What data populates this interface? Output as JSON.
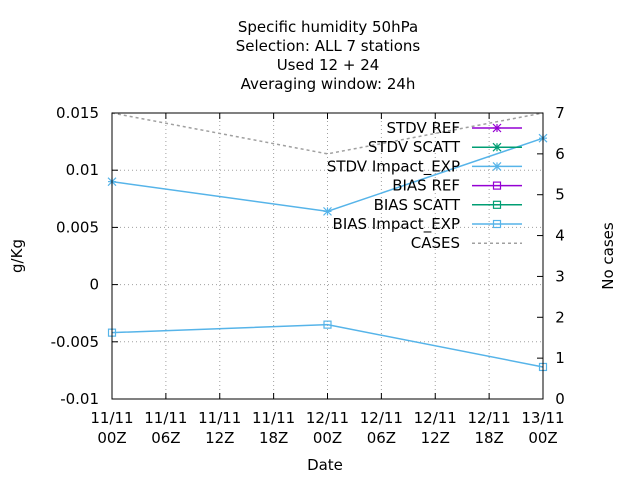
{
  "chart_data": {
    "type": "line",
    "title_lines": [
      "Specific humidity 50hPa",
      "Selection: ALL      7 stations",
      "Used  12 + 24",
      "Averaging window: 24h"
    ],
    "xlabel": "Date",
    "ylabel": "g/Kg",
    "y2label": "No cases",
    "x_ticks": [
      {
        "x": 0,
        "line1": "11/11",
        "line2": "00Z"
      },
      {
        "x": 6,
        "line1": "11/11",
        "line2": "06Z"
      },
      {
        "x": 12,
        "line1": "11/11",
        "line2": "12Z"
      },
      {
        "x": 18,
        "line1": "11/11",
        "line2": "18Z"
      },
      {
        "x": 24,
        "line1": "12/11",
        "line2": "00Z"
      },
      {
        "x": 30,
        "line1": "12/11",
        "line2": "06Z"
      },
      {
        "x": 36,
        "line1": "12/11",
        "line2": "12Z"
      },
      {
        "x": 42,
        "line1": "12/11",
        "line2": "18Z"
      },
      {
        "x": 48,
        "line1": "13/11",
        "line2": "00Z"
      }
    ],
    "xlim": [
      0,
      48
    ],
    "ylim": [
      -0.01,
      0.015
    ],
    "y_ticks": [
      {
        "v": -0.01,
        "label": "-0.01"
      },
      {
        "v": -0.005,
        "label": "-0.005"
      },
      {
        "v": 0,
        "label": "0"
      },
      {
        "v": 0.005,
        "label": "0.005"
      },
      {
        "v": 0.01,
        "label": "0.01"
      },
      {
        "v": 0.015,
        "label": "0.015"
      }
    ],
    "y2lim": [
      0,
      7
    ],
    "y2_ticks": [
      {
        "v": 0,
        "label": "0"
      },
      {
        "v": 1,
        "label": "1"
      },
      {
        "v": 2,
        "label": "2"
      },
      {
        "v": 3,
        "label": "3"
      },
      {
        "v": 4,
        "label": "4"
      },
      {
        "v": 5,
        "label": "5"
      },
      {
        "v": 6,
        "label": "6"
      },
      {
        "v": 7,
        "label": "7"
      }
    ],
    "grid": true,
    "legend_position": "top-right",
    "series": [
      {
        "name": "STDV REF",
        "axis": "y",
        "marker": "star",
        "dashed": false,
        "color": "#9400d3",
        "x": [],
        "values": []
      },
      {
        "name": "STDV SCATT",
        "axis": "y",
        "marker": "star",
        "dashed": false,
        "color": "#009e73",
        "x": [],
        "values": []
      },
      {
        "name": "STDV Impact_EXP",
        "axis": "y",
        "marker": "star",
        "dashed": false,
        "color": "#56b4e9",
        "x": [
          0,
          24,
          48
        ],
        "values": [
          0.009,
          0.0064,
          0.0128
        ]
      },
      {
        "name": "BIAS REF",
        "axis": "y",
        "marker": "square",
        "dashed": false,
        "color": "#9400d3",
        "x": [],
        "values": []
      },
      {
        "name": "BIAS SCATT",
        "axis": "y",
        "marker": "square",
        "dashed": false,
        "color": "#009e73",
        "x": [],
        "values": []
      },
      {
        "name": "BIAS Impact_EXP",
        "axis": "y",
        "marker": "square",
        "dashed": false,
        "color": "#56b4e9",
        "x": [
          0,
          24,
          48
        ],
        "values": [
          -0.0042,
          -0.0035,
          -0.0072
        ]
      },
      {
        "name": "CASES",
        "axis": "y2",
        "marker": "none",
        "dashed": true,
        "color": "#a0a0a0",
        "x": [
          0,
          24,
          48
        ],
        "values": [
          7,
          6,
          7
        ]
      }
    ]
  }
}
